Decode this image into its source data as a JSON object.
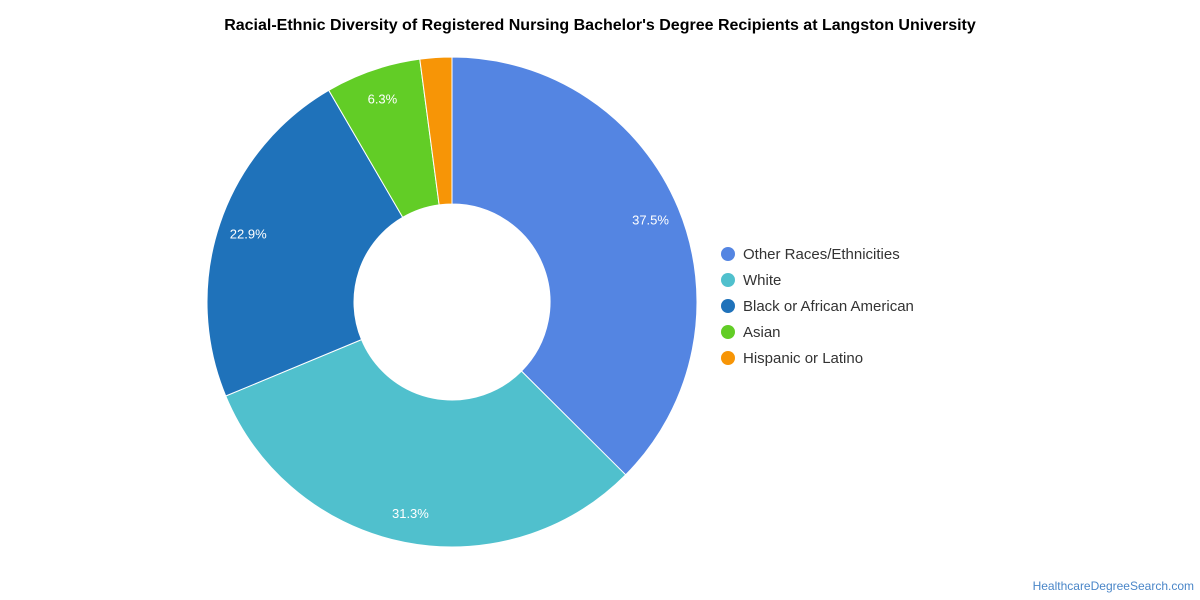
{
  "chart_data": {
    "type": "pie",
    "title": "Racial-Ethnic Diversity of Registered Nursing Bachelor's Degree Recipients at Langston University",
    "donut": true,
    "legend_position": "right",
    "slices": [
      {
        "label": "Other Races/Ethnicities",
        "value": 37.5,
        "display": "37.5%",
        "color": "#5485e2"
      },
      {
        "label": "White",
        "value": 31.3,
        "display": "31.3%",
        "color": "#50c0cd"
      },
      {
        "label": "Black or African American",
        "value": 22.9,
        "display": "22.9%",
        "color": "#1f72ba"
      },
      {
        "label": "Asian",
        "value": 6.3,
        "display": "6.3%",
        "color": "#62cd26"
      },
      {
        "label": "Hispanic or Latino",
        "value": 2.1,
        "display": "",
        "color": "#f79506"
      }
    ]
  },
  "credit": "HealthcareDegreeSearch.com"
}
